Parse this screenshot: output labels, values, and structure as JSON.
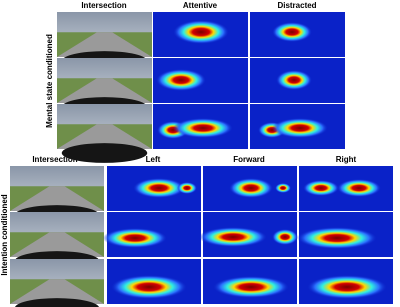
{
  "top": {
    "columns": [
      "Intersection",
      "Attentive",
      "Distracted"
    ],
    "row_label": "Mental state conditioned"
  },
  "bottom": {
    "columns": [
      "Intersection",
      "Left",
      "Forward",
      "Right"
    ],
    "row_label": "Intention conditioned"
  }
}
